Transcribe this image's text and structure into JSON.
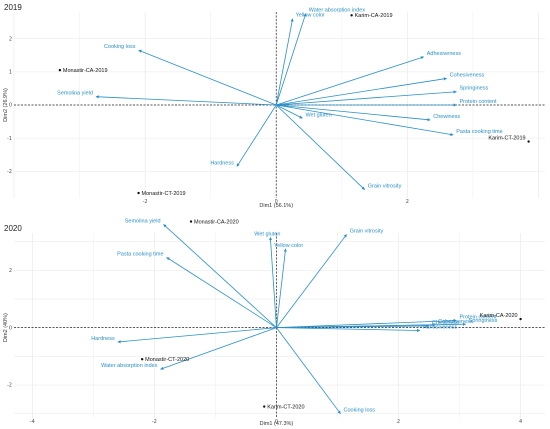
{
  "chart_data": [
    {
      "type": "scatter",
      "title": "2019",
      "xlabel": "Dim1 (56.1%)",
      "ylabel": "Dim2 (26.9%)",
      "xlim": [
        -4.0,
        4.1
      ],
      "ylim": [
        -2.8,
        2.8
      ],
      "xticks": [
        -2,
        0,
        2
      ],
      "yticks": [
        2,
        1,
        0,
        -1,
        -2
      ],
      "grid": true,
      "variable_color": "#2a8fc7",
      "individual_color": "#111111",
      "variables": [
        {
          "name": "Water absorption index",
          "x": 0.45,
          "y": 2.75
        },
        {
          "name": "Yellow color",
          "x": 0.25,
          "y": 2.6
        },
        {
          "name": "Cooking loss",
          "x": -2.1,
          "y": 1.65
        },
        {
          "name": "Semolina yield",
          "x": -2.75,
          "y": 0.25
        },
        {
          "name": "Adhesiveness",
          "x": 2.25,
          "y": 1.45
        },
        {
          "name": "Cohesiveness",
          "x": 2.6,
          "y": 0.8
        },
        {
          "name": "Springiness",
          "x": 2.75,
          "y": 0.4
        },
        {
          "name": "Protein content",
          "x": 2.75,
          "y": 0.0
        },
        {
          "name": "Chewiness",
          "x": 2.35,
          "y": -0.45
        },
        {
          "name": "Wet gluten",
          "x": 0.4,
          "y": -0.4
        },
        {
          "name": "Pasta cooking time",
          "x": 2.7,
          "y": -0.9
        },
        {
          "name": "Hardness",
          "x": -0.6,
          "y": -1.85
        },
        {
          "name": "Grain vitrosity",
          "x": 1.35,
          "y": -2.55
        }
      ],
      "individuals": [
        {
          "name": "Karim-CA-2019",
          "x": 1.15,
          "y": 2.7
        },
        {
          "name": "Monastir-CA-2019",
          "x": -3.3,
          "y": 1.05
        },
        {
          "name": "Karim-CT-2019",
          "x": 3.85,
          "y": -1.1
        },
        {
          "name": "Monastir-CT-2019",
          "x": -2.1,
          "y": -2.65
        }
      ]
    },
    {
      "type": "scatter",
      "title": "2020",
      "xlabel": "Dim1 (47.3%)",
      "ylabel": "Dim2 (40%)",
      "xlim": [
        -4.3,
        4.4
      ],
      "ylim": [
        -3.15,
        3.3
      ],
      "xticks": [
        -4,
        -2,
        0,
        2,
        4
      ],
      "yticks": [
        2,
        0,
        -2
      ],
      "grid": true,
      "variable_color": "#2a8fc7",
      "individual_color": "#111111",
      "variables": [
        {
          "name": "Wet gluten",
          "x": -0.1,
          "y": 3.15
        },
        {
          "name": "Yellow color",
          "x": 0.15,
          "y": 2.75
        },
        {
          "name": "Grain vitrosity",
          "x": 1.15,
          "y": 3.25
        },
        {
          "name": "Semolina yield",
          "x": -1.85,
          "y": 3.6
        },
        {
          "name": "Pasta cooking time",
          "x": -1.8,
          "y": 2.45
        },
        {
          "name": "Hardness",
          "x": -2.6,
          "y": -0.5
        },
        {
          "name": "Water absorption index",
          "x": -1.9,
          "y": -1.45
        },
        {
          "name": "Cooking loss",
          "x": 1.05,
          "y": -3.0
        },
        {
          "name": "Protein content",
          "x": 2.95,
          "y": 0.25
        },
        {
          "name": "Springiness",
          "x": 3.1,
          "y": 0.12
        },
        {
          "name": "Chewiness",
          "x": 2.5,
          "y": 0.06
        },
        {
          "name": "Cohesiveness",
          "x": 2.6,
          "y": 0.1
        },
        {
          "name": "Adhesiveness",
          "x": 2.35,
          "y": -0.1
        }
      ],
      "individuals": [
        {
          "name": "Monastir-CA-2020",
          "x": -1.4,
          "y": 3.7
        },
        {
          "name": "Karim-CA-2020",
          "x": 4.0,
          "y": 0.3
        },
        {
          "name": "Monastir-CT-2020",
          "x": -2.2,
          "y": -1.1
        },
        {
          "name": "Karim-CT-2020",
          "x": -0.2,
          "y": -2.75
        }
      ]
    }
  ]
}
